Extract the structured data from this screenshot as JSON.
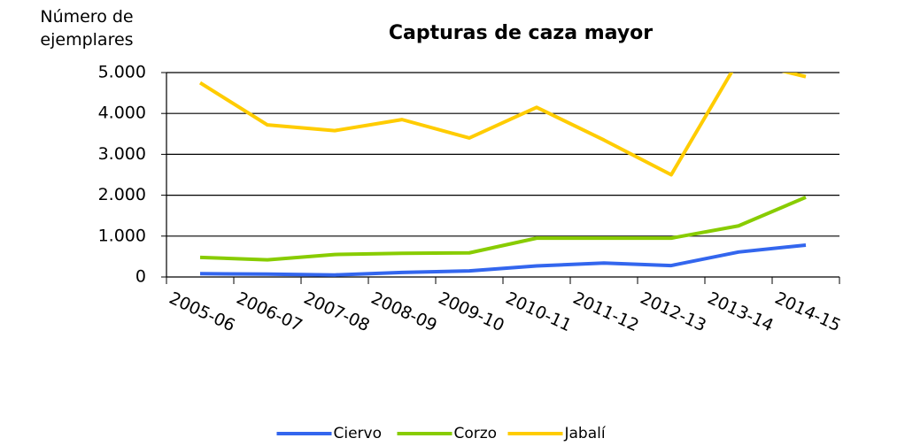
{
  "chart_data": {
    "type": "line",
    "title": "Capturas de caza mayor",
    "y_label": "Número de ejemplares",
    "categories": [
      "2005-06",
      "2006-07",
      "2007-08",
      "2008-09",
      "2009-10",
      "2010-11",
      "2011-12",
      "2012-13",
      "2013-14",
      "2014-15"
    ],
    "series": [
      {
        "name": "Ciervo",
        "color": "#3366ee",
        "values": [
          80,
          70,
          50,
          110,
          150,
          270,
          340,
          280,
          610,
          780
        ]
      },
      {
        "name": "Corzo",
        "color": "#88cc00",
        "values": [
          480,
          420,
          550,
          580,
          590,
          950,
          950,
          950,
          1250,
          1950
        ]
      },
      {
        "name": "Jabalí",
        "color": "#ffcc00",
        "values": [
          4750,
          3720,
          3580,
          3850,
          3400,
          4150,
          3350,
          2500,
          5300,
          4900
        ]
      }
    ],
    "ylim": [
      0,
      5000
    ],
    "yticks": [
      0,
      {
        "value": 1000,
        "label": "1.000"
      },
      {
        "value": 2000,
        "label": "2.000"
      },
      {
        "value": 3000,
        "label": "3.000"
      },
      {
        "value": 4000,
        "label": "4.000"
      },
      {
        "value": 5000,
        "label": "5.000"
      }
    ],
    "grid": true,
    "legend": "bottom"
  }
}
